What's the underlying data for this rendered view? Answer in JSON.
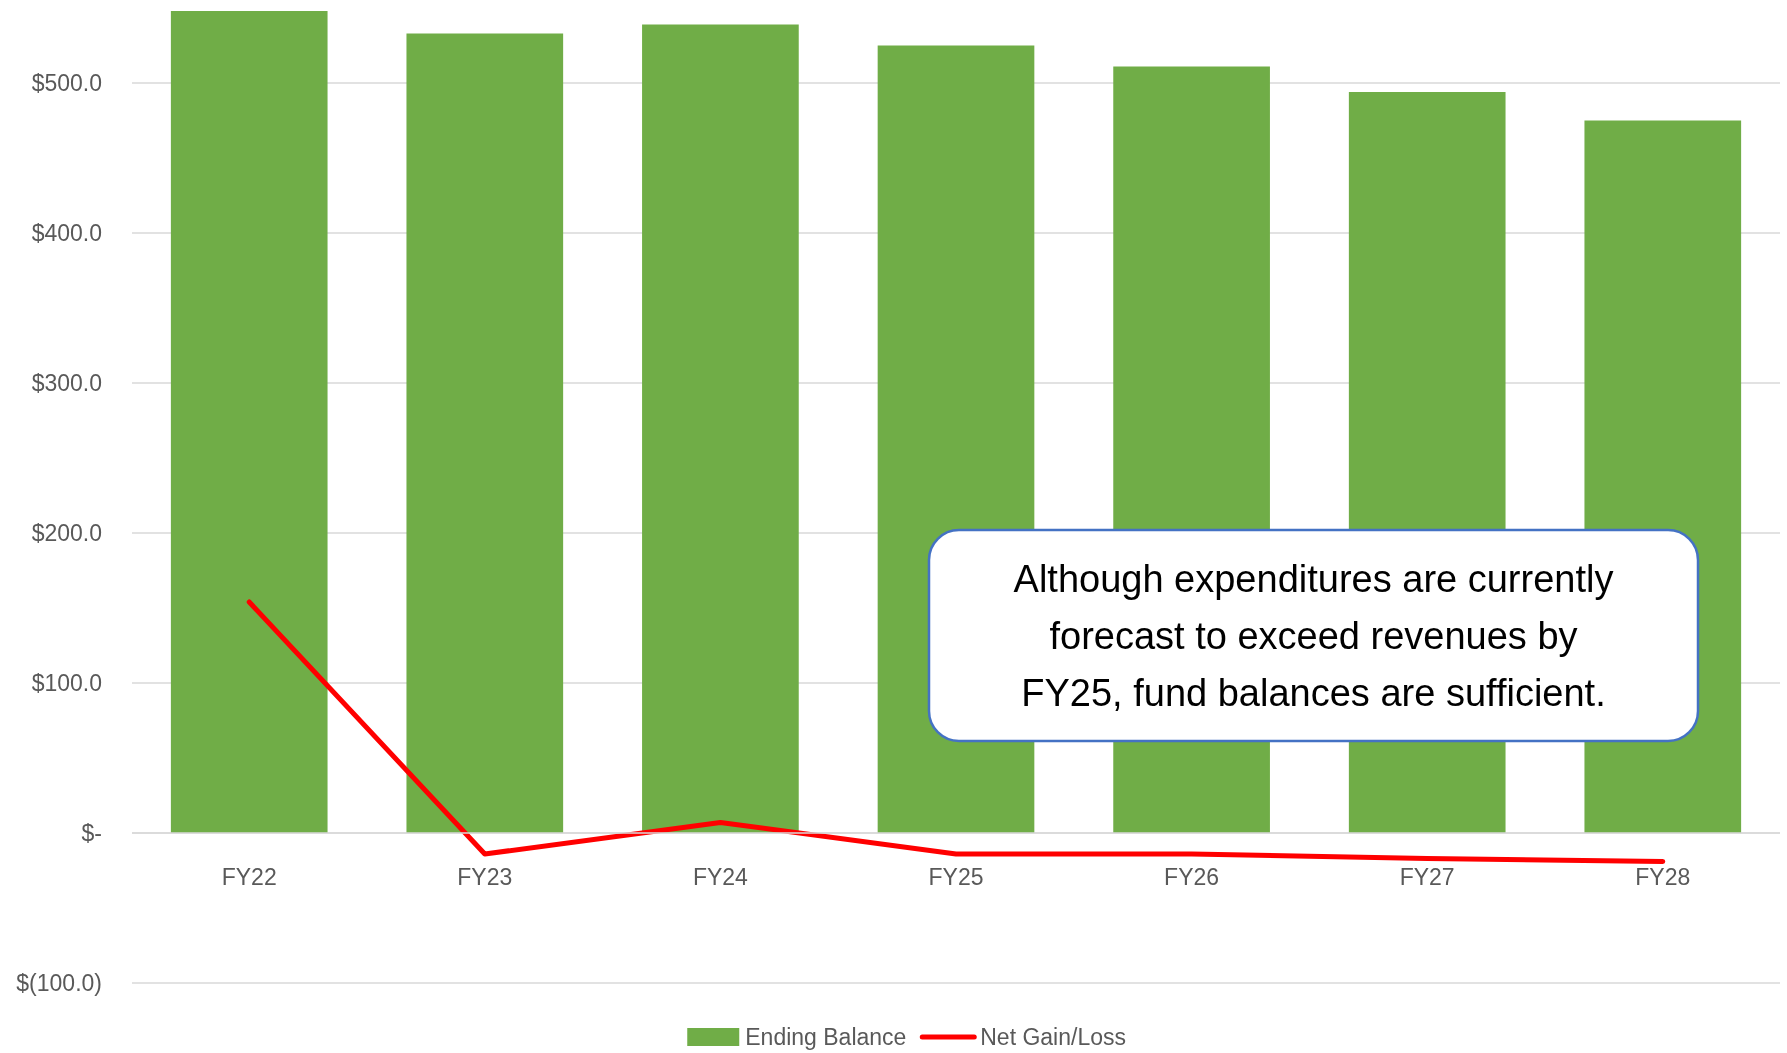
{
  "chart_data": {
    "type": "bar",
    "categories": [
      "FY22",
      "FY23",
      "FY24",
      "FY25",
      "FY26",
      "FY27",
      "FY28"
    ],
    "series": [
      {
        "name": "Ending Balance",
        "color": "#70ad47",
        "values": [
          548,
          533,
          539,
          525,
          511,
          494,
          475
        ]
      },
      {
        "name": "Net Gain/Loss",
        "type": "line",
        "color": "#ff0000",
        "values": [
          154,
          -14,
          7,
          -14,
          -14,
          -17,
          -19
        ]
      }
    ],
    "ylim": [
      -100,
      550
    ],
    "yticks": [
      {
        "value": -100,
        "label": "$(100.0)"
      },
      {
        "value": 0,
        "label": "$-"
      },
      {
        "value": 100,
        "label": "$100.0"
      },
      {
        "value": 200,
        "label": "$200.0"
      },
      {
        "value": 300,
        "label": "$300.0"
      },
      {
        "value": 400,
        "label": "$400.0"
      },
      {
        "value": 500,
        "label": "$500.0"
      }
    ],
    "grid": "y",
    "legend": "bottom",
    "marker": "none",
    "line_style": "solid",
    "annotations": [
      "Although expenditures are currently forecast to exceed revenues by FY25, fund balances are sufficient."
    ]
  }
}
